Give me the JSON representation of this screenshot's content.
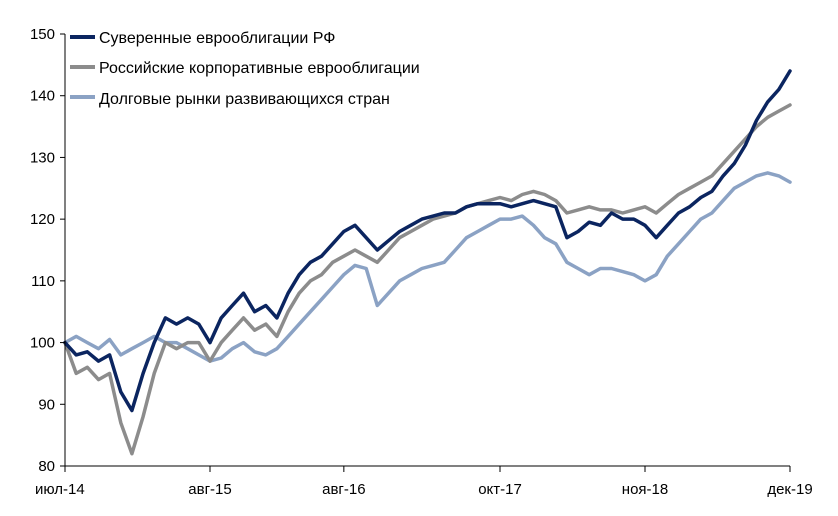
{
  "chart_data": {
    "type": "line",
    "title": "",
    "xlabel": "",
    "ylabel": "",
    "ylim": [
      80,
      150
    ],
    "yticks": [
      80,
      90,
      100,
      110,
      120,
      130,
      140,
      150
    ],
    "grid": false,
    "legend_position": "top-left",
    "x_tick_labels": [
      "июл-14",
      "авг-15",
      "авг-16",
      "окт-17",
      "ноя-18",
      "дек-19"
    ],
    "x_tick_dates": [
      "2014-07",
      "2015-08",
      "2016-08",
      "2017-10",
      "2018-11",
      "2019-12"
    ],
    "x_range": [
      "2014-07",
      "2019-12"
    ],
    "series": [
      {
        "name": "Суверенные еврооблигации РФ",
        "color": "#0b2560",
        "x": [
          "2014-07",
          "2014-08",
          "2014-09",
          "2014-10",
          "2014-11",
          "2014-12",
          "2015-01",
          "2015-02",
          "2015-03",
          "2015-04",
          "2015-05",
          "2015-06",
          "2015-07",
          "2015-08",
          "2015-09",
          "2015-10",
          "2015-11",
          "2015-12",
          "2016-01",
          "2016-02",
          "2016-03",
          "2016-04",
          "2016-05",
          "2016-06",
          "2016-07",
          "2016-08",
          "2016-09",
          "2016-10",
          "2016-11",
          "2016-12",
          "2017-01",
          "2017-02",
          "2017-03",
          "2017-04",
          "2017-05",
          "2017-06",
          "2017-07",
          "2017-08",
          "2017-09",
          "2017-10",
          "2017-11",
          "2017-12",
          "2018-01",
          "2018-02",
          "2018-03",
          "2018-04",
          "2018-05",
          "2018-06",
          "2018-07",
          "2018-08",
          "2018-09",
          "2018-10",
          "2018-11",
          "2018-12",
          "2019-01",
          "2019-02",
          "2019-03",
          "2019-04",
          "2019-05",
          "2019-06",
          "2019-07",
          "2019-08",
          "2019-09",
          "2019-10",
          "2019-11",
          "2019-12"
        ],
        "values": [
          100,
          98,
          98.5,
          97,
          98,
          92,
          89,
          95,
          100,
          104,
          103,
          104,
          103,
          100,
          104,
          106,
          108,
          105,
          106,
          104,
          108,
          111,
          113,
          114,
          116,
          118,
          119,
          117,
          115,
          116.5,
          118,
          119,
          120,
          120.5,
          121,
          121,
          122,
          122.5,
          122.5,
          122.5,
          122,
          122.5,
          123,
          122.5,
          122,
          117,
          118,
          119.5,
          119,
          121,
          120,
          120,
          119,
          117,
          119,
          121,
          122,
          123.5,
          124.5,
          127,
          129,
          132,
          136,
          139,
          141,
          144
        ]
      },
      {
        "name": "Российские корпоративные еврооблигации",
        "color": "#8c8c8c",
        "x": [
          "2014-07",
          "2014-08",
          "2014-09",
          "2014-10",
          "2014-11",
          "2014-12",
          "2015-01",
          "2015-02",
          "2015-03",
          "2015-04",
          "2015-05",
          "2015-06",
          "2015-07",
          "2015-08",
          "2015-09",
          "2015-10",
          "2015-11",
          "2015-12",
          "2016-01",
          "2016-02",
          "2016-03",
          "2016-04",
          "2016-05",
          "2016-06",
          "2016-07",
          "2016-08",
          "2016-09",
          "2016-10",
          "2016-11",
          "2016-12",
          "2017-01",
          "2017-02",
          "2017-03",
          "2017-04",
          "2017-05",
          "2017-06",
          "2017-07",
          "2017-08",
          "2017-09",
          "2017-10",
          "2017-11",
          "2017-12",
          "2018-01",
          "2018-02",
          "2018-03",
          "2018-04",
          "2018-05",
          "2018-06",
          "2018-07",
          "2018-08",
          "2018-09",
          "2018-10",
          "2018-11",
          "2018-12",
          "2019-01",
          "2019-02",
          "2019-03",
          "2019-04",
          "2019-05",
          "2019-06",
          "2019-07",
          "2019-08",
          "2019-09",
          "2019-10",
          "2019-11",
          "2019-12"
        ],
        "values": [
          100,
          95,
          96,
          94,
          95,
          87,
          82,
          88,
          95,
          100,
          99,
          100,
          100,
          97,
          100,
          102,
          104,
          102,
          103,
          101,
          105,
          108,
          110,
          111,
          113,
          114,
          115,
          114,
          113,
          115,
          117,
          118,
          119,
          120,
          120.5,
          121,
          122,
          122.5,
          123,
          123.5,
          123,
          124,
          124.5,
          124,
          123,
          121,
          121.5,
          122,
          121.5,
          121.5,
          121,
          121.5,
          122,
          121,
          122.5,
          124,
          125,
          126,
          127,
          129,
          131,
          133,
          135,
          136.5,
          137.5,
          138.5
        ]
      },
      {
        "name": "Долговые рынки развивающихся стран",
        "color": "#8ba2c4",
        "x": [
          "2014-07",
          "2014-08",
          "2014-09",
          "2014-10",
          "2014-11",
          "2014-12",
          "2015-01",
          "2015-02",
          "2015-03",
          "2015-04",
          "2015-05",
          "2015-06",
          "2015-07",
          "2015-08",
          "2015-09",
          "2015-10",
          "2015-11",
          "2015-12",
          "2016-01",
          "2016-02",
          "2016-03",
          "2016-04",
          "2016-05",
          "2016-06",
          "2016-07",
          "2016-08",
          "2016-09",
          "2016-10",
          "2016-11",
          "2016-12",
          "2017-01",
          "2017-02",
          "2017-03",
          "2017-04",
          "2017-05",
          "2017-06",
          "2017-07",
          "2017-08",
          "2017-09",
          "2017-10",
          "2017-11",
          "2017-12",
          "2018-01",
          "2018-02",
          "2018-03",
          "2018-04",
          "2018-05",
          "2018-06",
          "2018-07",
          "2018-08",
          "2018-09",
          "2018-10",
          "2018-11",
          "2018-12",
          "2019-01",
          "2019-02",
          "2019-03",
          "2019-04",
          "2019-05",
          "2019-06",
          "2019-07",
          "2019-08",
          "2019-09",
          "2019-10",
          "2019-11",
          "2019-12"
        ],
        "values": [
          100,
          101,
          100,
          99,
          100.5,
          98,
          99,
          100,
          101,
          100,
          100,
          99,
          98,
          97,
          97.5,
          99,
          100,
          98.5,
          98,
          99,
          101,
          103,
          105,
          107,
          109,
          111,
          112.5,
          112,
          106,
          108,
          110,
          111,
          112,
          112.5,
          113,
          115,
          117,
          118,
          119,
          120,
          120,
          120.5,
          119,
          117,
          116,
          113,
          112,
          111,
          112,
          112,
          111.5,
          111,
          110,
          111,
          114,
          116,
          118,
          120,
          121,
          123,
          125,
          126,
          127,
          127.5,
          127,
          126
        ]
      }
    ]
  }
}
